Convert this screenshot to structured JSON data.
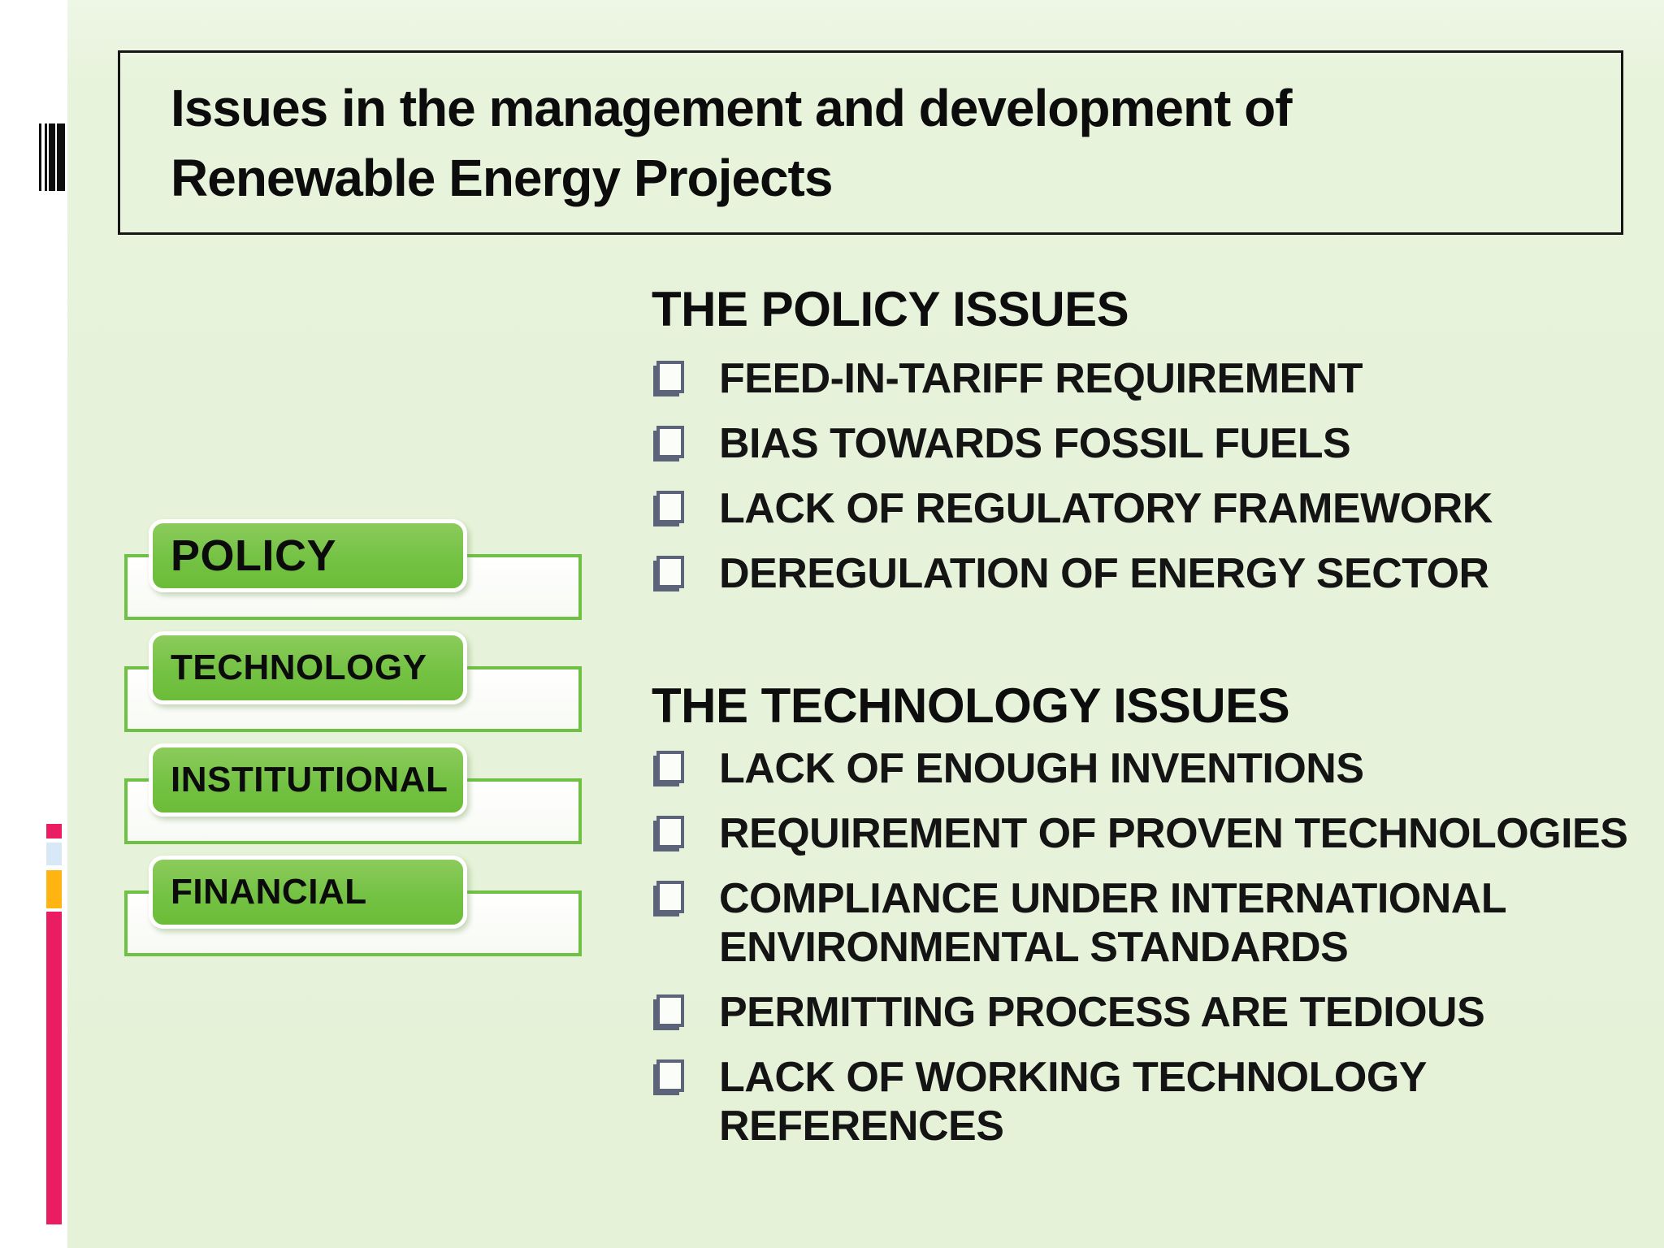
{
  "slide": {
    "title": "Issues  in the management and  development of\nRenewable Energy Projects",
    "left_rail": {
      "barcode_icon": "barcode-stripes-icon",
      "deco_bar_colors": [
        "#EA1D63",
        "#D9E8F7",
        "#FFB412",
        "#EA1D63"
      ]
    },
    "diagram": {
      "buttons": [
        {
          "label": "POLICY"
        },
        {
          "label": "TECHNOLOGY"
        },
        {
          "label": "INSTITUTIONAL"
        },
        {
          "label": "FINANCIAL"
        }
      ]
    },
    "sections": [
      {
        "heading": "THE POLICY ISSUES",
        "bullet_icon": "open-square-checkbox",
        "items": [
          {
            "text": "FEED-IN-TARIFF REQUIREMENT"
          },
          {
            "text": "BIAS TOWARDS FOSSIL FUELS"
          },
          {
            "text": "LACK OF REGULATORY FRAMEWORK"
          },
          {
            "text": "DEREGULATION OF ENERGY SECTOR"
          }
        ]
      },
      {
        "heading": "THE TECHNOLOGY ISSUES",
        "bullet_icon": "open-square-checkbox",
        "items": [
          {
            "text": "LACK OF ENOUGH INVENTIONS"
          },
          {
            "text": "REQUIREMENT OF PROVEN TECHNOLOGIES"
          },
          {
            "text": "COMPLIANCE UNDER INTERNATIONAL\nENVIRONMENTAL STANDARDS"
          },
          {
            "text": "PERMITTING PROCESS ARE TEDIOUS"
          },
          {
            "text": "LACK OF  WORKING TECHNOLOGY\nREFERENCES"
          }
        ]
      }
    ],
    "colors": {
      "background_green": "#E7F3DB",
      "button_green": "#74C244",
      "box_border_green": "#6FC143",
      "checkbox_slate": "#5B6478",
      "deco_pink": "#EA1D63",
      "deco_blue": "#D9E8F7",
      "deco_orange": "#FFB412",
      "title_border_black": "#161616"
    }
  }
}
